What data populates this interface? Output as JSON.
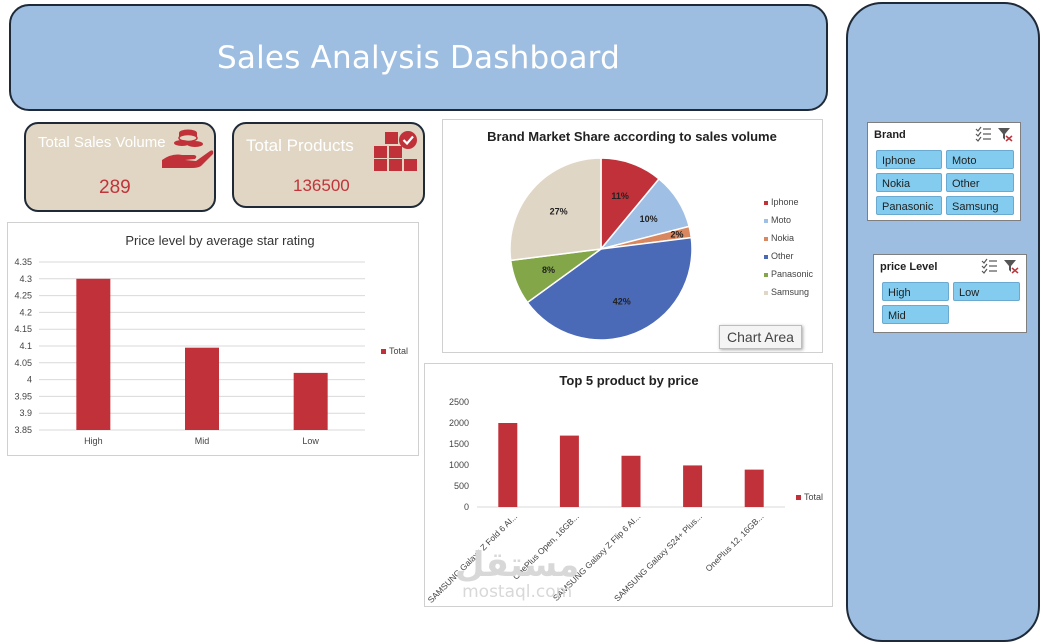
{
  "header": {
    "title": "Sales Analysis Dashboard"
  },
  "kpis": {
    "sales": {
      "title": "Total Sales Volume",
      "value": "289",
      "icon": "coins-hand-icon"
    },
    "products": {
      "title": "Total Products",
      "value": "136500",
      "icon": "boxes-check-icon"
    }
  },
  "slicers": {
    "brand": {
      "title": "Brand",
      "options": [
        "Iphone",
        "Moto",
        "Nokia",
        "Other",
        "Panasonic",
        "Samsung"
      ]
    },
    "price": {
      "title": "price Level",
      "options": [
        "High",
        "Low",
        "Mid"
      ]
    }
  },
  "tooltip": "Chart Area",
  "watermark": {
    "arabic": "مستقل",
    "latin": "mostaql.com"
  },
  "colors": {
    "bar": "#c1313a",
    "header": "#9dbde1",
    "kpi": "#e0d6c3",
    "slicer_button": "#83ccef"
  },
  "chart_data": [
    {
      "id": "rating",
      "type": "bar",
      "title": "Price level by average star rating",
      "categories": [
        "High",
        "Mid",
        "Low"
      ],
      "series": [
        {
          "name": "Total",
          "values": [
            4.3,
            4.095,
            4.02
          ]
        }
      ],
      "ylim": [
        3.85,
        4.35
      ],
      "yticks": [
        3.85,
        3.9,
        3.95,
        4,
        4.05,
        4.1,
        4.15,
        4.2,
        4.25,
        4.3,
        4.35
      ],
      "ytick_labels": [
        "3.85",
        "3.9",
        "3.95",
        "4",
        "4.05",
        "4.1",
        "4.15",
        "4.2",
        "4.25",
        "4.3",
        "4.35"
      ],
      "grid": true,
      "legend": "right"
    },
    {
      "id": "share",
      "type": "pie",
      "title": "Brand Market Share according to sales volume",
      "slices": [
        {
          "label": "Iphone",
          "value": 11,
          "display": "11%",
          "color": "#c1313a"
        },
        {
          "label": "Moto",
          "value": 10,
          "display": "10%",
          "color": "#9fbfe5"
        },
        {
          "label": "Nokia",
          "value": 2,
          "display": "2%",
          "color": "#d9875e"
        },
        {
          "label": "Other",
          "value": 42,
          "display": "42%",
          "color": "#4a69b6"
        },
        {
          "label": "Panasonic",
          "value": 8,
          "display": "8%",
          "color": "#82a648"
        },
        {
          "label": "Samsung",
          "value": 27,
          "display": "27%",
          "color": "#e0d6c5"
        }
      ],
      "legend": "right"
    },
    {
      "id": "top5",
      "type": "bar",
      "title": "Top 5 product by price",
      "categories": [
        "SAMSUNG Galaxy Z Fold 6 AI...",
        "OnePlus Open, 16GB...",
        "SAMSUNG Galaxy Z Flip 6 AI...",
        "SAMSUNG Galaxy S24+ Plus...",
        "OnePlus 12, 16GB..."
      ],
      "series": [
        {
          "name": "Total",
          "values": [
            2000,
            1700,
            1220,
            990,
            890
          ]
        }
      ],
      "ylim": [
        0,
        2500
      ],
      "yticks": [
        0,
        500,
        1000,
        1500,
        2000,
        2500
      ],
      "ytick_labels": [
        "0",
        "500",
        "1000",
        "1500",
        "2000",
        "2500"
      ],
      "grid": false,
      "legend": "right"
    }
  ]
}
